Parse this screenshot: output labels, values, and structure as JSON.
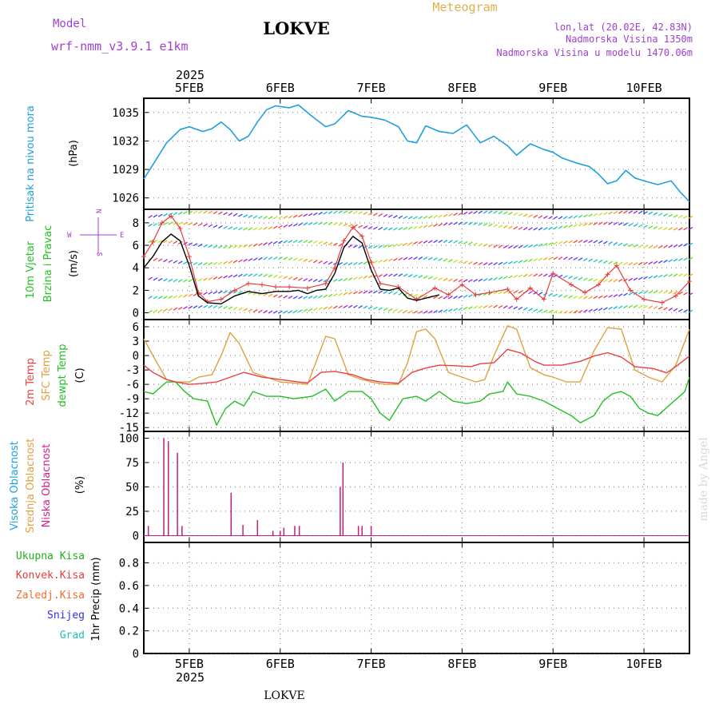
{
  "header": {
    "title": "LOKVE",
    "model_label": "Model",
    "model_name": "wrf-nmm_v3.9.1 e1km",
    "meteogram_label": "Meteogram",
    "lonlat": "lon,lat (20.02E, 42.83N)",
    "altitude": "Nadmorska Visina 1350m",
    "model_altitude": "Nadmorska Visina u modelu 1470.06m",
    "footer_title": "LOKVE",
    "watermark": "made by Angel"
  },
  "time_axis": {
    "year_label": "2025",
    "days": [
      "5FEB",
      "6FEB",
      "7FEB",
      "8FEB",
      "9FEB",
      "10FEB"
    ],
    "range_days": [
      4.5,
      10.5
    ]
  },
  "colors": {
    "pressure": "#1e9fe0",
    "wind_speed": "#000000",
    "gust": "#e83c3c",
    "temp_2m": "#e84040",
    "sfc_temp": "#e0a040",
    "dewpoint": "#22c022",
    "cloud_low": "#c0207a",
    "high_label": "#1ea0e0",
    "mid_label": "#e0a040",
    "low_label": "#d0208a",
    "total_precip": "#22b022",
    "conv_precip": "#e83c3c",
    "frozen_precip": "#f07030",
    "snow": "#3030e0",
    "graupel": "#20c0c0",
    "model_text": "#a040d0",
    "meteogram_text": "#e0b050"
  },
  "chart_data": [
    {
      "type": "line",
      "panel": "pressure",
      "ylabel_lines": [
        "Pritisak na nivou mora",
        "(hPa)"
      ],
      "y_ticks": [
        1026,
        1029,
        1032,
        1035
      ],
      "ylim": [
        1024.8,
        1036.5
      ],
      "grid": true,
      "series": [
        {
          "x": [
            4.5,
            4.6,
            4.75,
            4.9,
            5.0,
            5.15,
            5.25,
            5.35,
            5.45,
            5.55,
            5.65,
            5.75,
            5.85,
            5.95,
            6.1,
            6.2,
            6.35,
            6.5,
            6.6,
            6.75,
            6.9,
            7.0,
            7.15,
            7.3,
            7.4,
            7.5,
            7.6,
            7.75,
            7.9,
            8.05,
            8.2,
            8.35,
            8.5,
            8.6,
            8.75,
            8.9,
            9.0,
            9.1,
            9.25,
            9.4,
            9.5,
            9.6,
            9.7,
            9.8,
            9.9,
            10.0,
            10.15,
            10.3,
            10.4,
            10.5
          ],
          "y": [
            1028,
            1029.5,
            1031.8,
            1033.2,
            1033.5,
            1033.0,
            1033.3,
            1034.0,
            1033.2,
            1032.0,
            1032.5,
            1034.0,
            1035.3,
            1035.7,
            1035.5,
            1035.8,
            1034.6,
            1033.5,
            1033.8,
            1035.2,
            1034.6,
            1034.5,
            1034.2,
            1033.5,
            1032.0,
            1031.8,
            1033.6,
            1033.0,
            1032.8,
            1033.7,
            1031.8,
            1032.5,
            1031.5,
            1030.5,
            1031.7,
            1031.1,
            1030.8,
            1030.2,
            1029.7,
            1029.3,
            1028.5,
            1027.5,
            1027.8,
            1028.9,
            1028.1,
            1027.8,
            1027.4,
            1027.8,
            1026.6,
            1025.6
          ]
        }
      ]
    },
    {
      "type": "line",
      "panel": "wind",
      "ylabel_lines": [
        "10m Vjetar",
        "Brzina i Pravac",
        "(m/s)"
      ],
      "compass_labels": [
        "N",
        "W",
        "E",
        "S"
      ],
      "y_ticks": [
        0,
        2,
        4,
        6,
        8
      ],
      "ylim": [
        -0.6,
        9.2
      ],
      "grid": true,
      "series": [
        {
          "name": "speed",
          "x": [
            4.5,
            4.6,
            4.7,
            4.8,
            4.9,
            5.0,
            5.1,
            5.2,
            5.35,
            5.5,
            5.65,
            5.8,
            5.95,
            6.1,
            6.2,
            6.3,
            6.4,
            6.5,
            6.6,
            6.7,
            6.8,
            6.9,
            7.0,
            7.1,
            7.2,
            7.3,
            7.4,
            7.5,
            7.6,
            7.75
          ],
          "y": [
            4.0,
            5.0,
            6.3,
            7.0,
            6.4,
            4.2,
            1.5,
            0.9,
            0.8,
            1.5,
            1.9,
            1.7,
            1.9,
            1.9,
            2.0,
            1.7,
            2.0,
            2.1,
            3.5,
            5.8,
            6.8,
            6.2,
            3.8,
            2.1,
            2.0,
            2.2,
            1.3,
            1.1,
            1.3,
            1.6
          ]
        },
        {
          "name": "gust",
          "x": [
            4.5,
            4.6,
            4.7,
            4.8,
            4.9,
            5.0,
            5.1,
            5.2,
            5.35,
            5.5,
            5.65,
            5.8,
            5.95,
            6.1,
            6.3,
            6.5,
            6.6,
            6.7,
            6.8,
            6.9,
            7.0,
            7.1,
            7.3,
            7.5,
            7.7,
            7.85,
            8.0,
            8.15,
            8.3,
            8.5,
            8.6,
            8.75,
            8.9,
            9.0,
            9.2,
            9.35,
            9.5,
            9.6,
            9.7,
            9.85,
            10.0,
            10.2,
            10.35,
            10.5
          ],
          "y": [
            5.0,
            6.3,
            8.0,
            8.6,
            7.5,
            5.0,
            1.8,
            1.0,
            1.2,
            2.0,
            2.6,
            2.5,
            2.3,
            2.3,
            2.2,
            2.6,
            4.0,
            6.4,
            7.6,
            6.8,
            4.5,
            2.6,
            2.3,
            1.2,
            2.2,
            1.6,
            2.5,
            1.6,
            1.8,
            2.1,
            1.2,
            2.2,
            1.2,
            3.5,
            2.5,
            1.8,
            2.5,
            3.4,
            4.2,
            2.0,
            1.2,
            0.9,
            1.5,
            2.8
          ]
        }
      ]
    },
    {
      "type": "line",
      "panel": "temperature",
      "ylabel_lines": [
        "2m Temp",
        "SFC Temp",
        "dewpt Temp",
        "(C)"
      ],
      "y_ticks": [
        -15,
        -12,
        -9,
        -6,
        -3,
        0,
        3,
        6
      ],
      "ylim": [
        -15.8,
        7.5
      ],
      "grid": true,
      "series": [
        {
          "name": "2m Temp",
          "x": [
            4.5,
            4.6,
            4.75,
            4.85,
            5.0,
            5.15,
            5.3,
            5.45,
            5.6,
            5.8,
            6.0,
            6.2,
            6.3,
            6.45,
            6.6,
            6.8,
            6.95,
            7.1,
            7.3,
            7.45,
            7.6,
            7.75,
            7.9,
            8.1,
            8.2,
            8.35,
            8.5,
            8.65,
            8.8,
            8.9,
            9.1,
            9.3,
            9.45,
            9.6,
            9.75,
            9.9,
            10.1,
            10.25,
            10.35,
            10.5
          ],
          "y": [
            -2,
            -3.5,
            -5,
            -5.5,
            -6,
            -5.8,
            -5.5,
            -4.5,
            -3.5,
            -4.5,
            -5,
            -5.5,
            -5.7,
            -3.5,
            -3.3,
            -4.0,
            -5.0,
            -5.5,
            -5.8,
            -3.5,
            -2.6,
            -2.0,
            -2.1,
            -2.3,
            -1.7,
            -1.5,
            1.3,
            0.5,
            -1.2,
            -2.0,
            -2.0,
            -1.2,
            -0.1,
            0.6,
            -0.3,
            -2.3,
            -2.7,
            -3.6,
            -2.3,
            -0.1
          ]
        },
        {
          "name": "SFC Temp",
          "x": [
            4.5,
            4.6,
            4.75,
            4.85,
            5.0,
            5.1,
            5.25,
            5.35,
            5.45,
            5.55,
            5.7,
            5.85,
            6.0,
            6.2,
            6.3,
            6.4,
            6.5,
            6.6,
            6.75,
            6.9,
            7.0,
            7.15,
            7.3,
            7.4,
            7.5,
            7.6,
            7.7,
            7.85,
            8.0,
            8.15,
            8.25,
            8.35,
            8.5,
            8.6,
            8.75,
            8.9,
            9.0,
            9.15,
            9.3,
            9.45,
            9.6,
            9.75,
            9.9,
            10.05,
            10.2,
            10.35,
            10.5
          ],
          "y": [
            3.5,
            0,
            -5,
            -5.5,
            -5.5,
            -4.5,
            -4,
            0,
            4.8,
            2.5,
            -3.5,
            -4.5,
            -5.5,
            -5.8,
            -6,
            -1,
            4.0,
            3.5,
            -4,
            -5,
            -5.5,
            -6,
            -6,
            -1.5,
            5.0,
            5.5,
            3.5,
            -3.5,
            -4.5,
            -5.5,
            -5.0,
            0,
            6.2,
            5.5,
            -2.5,
            -4,
            -4.5,
            -5.5,
            -5.5,
            1.0,
            5.8,
            5.5,
            -3,
            -4.5,
            -5.5,
            -2.0,
            5.5
          ]
        },
        {
          "name": "dewpt Temp",
          "x": [
            4.5,
            4.6,
            4.75,
            4.85,
            4.95,
            5.05,
            5.2,
            5.3,
            5.4,
            5.5,
            5.6,
            5.7,
            5.85,
            6.0,
            6.15,
            6.35,
            6.5,
            6.6,
            6.75,
            6.9,
            7.0,
            7.1,
            7.2,
            7.35,
            7.5,
            7.6,
            7.75,
            7.9,
            8.05,
            8.2,
            8.3,
            8.45,
            8.5,
            8.6,
            8.75,
            8.9,
            9.05,
            9.2,
            9.3,
            9.45,
            9.55,
            9.65,
            9.75,
            9.85,
            9.95,
            10.05,
            10.15,
            10.3,
            10.45,
            10.5
          ],
          "y": [
            -7.5,
            -8,
            -5.5,
            -5.5,
            -7.5,
            -9,
            -9.5,
            -14.5,
            -11,
            -9.5,
            -10.5,
            -7.5,
            -8.5,
            -8.5,
            -9,
            -8.5,
            -7,
            -9.5,
            -7.5,
            -7.5,
            -9,
            -12,
            -13.5,
            -9,
            -8.5,
            -9.5,
            -7.5,
            -9.5,
            -10,
            -9.5,
            -8,
            -7.5,
            -5.5,
            -8,
            -8.5,
            -9.5,
            -11,
            -12.5,
            -14,
            -12.5,
            -9.5,
            -8,
            -7.5,
            -8.5,
            -11,
            -12,
            -12.5,
            -10,
            -7.5,
            -4.5
          ]
        }
      ]
    },
    {
      "type": "bar",
      "panel": "clouds",
      "ylabel_lines": [
        "Visoka Oblacnost",
        "Srednja Oblacnost",
        "Niska Oblacnost",
        "(%)"
      ],
      "y_ticks": [
        0,
        25,
        50,
        75,
        100
      ],
      "ylim": [
        -7,
        107
      ],
      "grid": true,
      "series": [
        {
          "name": "Niska Oblacnost",
          "x": [
            4.55,
            4.72,
            4.77,
            4.87,
            4.92,
            5.46,
            5.59,
            5.75,
            5.92,
            6.0,
            6.04,
            6.16,
            6.21,
            6.66,
            6.69,
            6.86,
            6.9,
            7.0
          ],
          "y": [
            10,
            100,
            97,
            85,
            10,
            44,
            11,
            16,
            5,
            5,
            8,
            10,
            10,
            50,
            75,
            10,
            10,
            10
          ]
        }
      ]
    },
    {
      "type": "bar",
      "panel": "precipitation",
      "legend": [
        "Ukupna Kisa",
        "Konvek.Kisa",
        "Zaledj.Kisa",
        "Snijeg",
        "Grad"
      ],
      "ylabel_lines": [
        "1hr Precip (mm)"
      ],
      "y_ticks": [
        0,
        0.2,
        0.4,
        0.6,
        0.8
      ],
      "y_tick_labels": [
        "0",
        "0.2",
        "0.4",
        "0.6",
        "0.8"
      ],
      "ylim": [
        0,
        0.98
      ],
      "grid": true,
      "series": [
        {
          "name": "Ukupna Kisa",
          "x": [],
          "y": []
        }
      ]
    }
  ]
}
